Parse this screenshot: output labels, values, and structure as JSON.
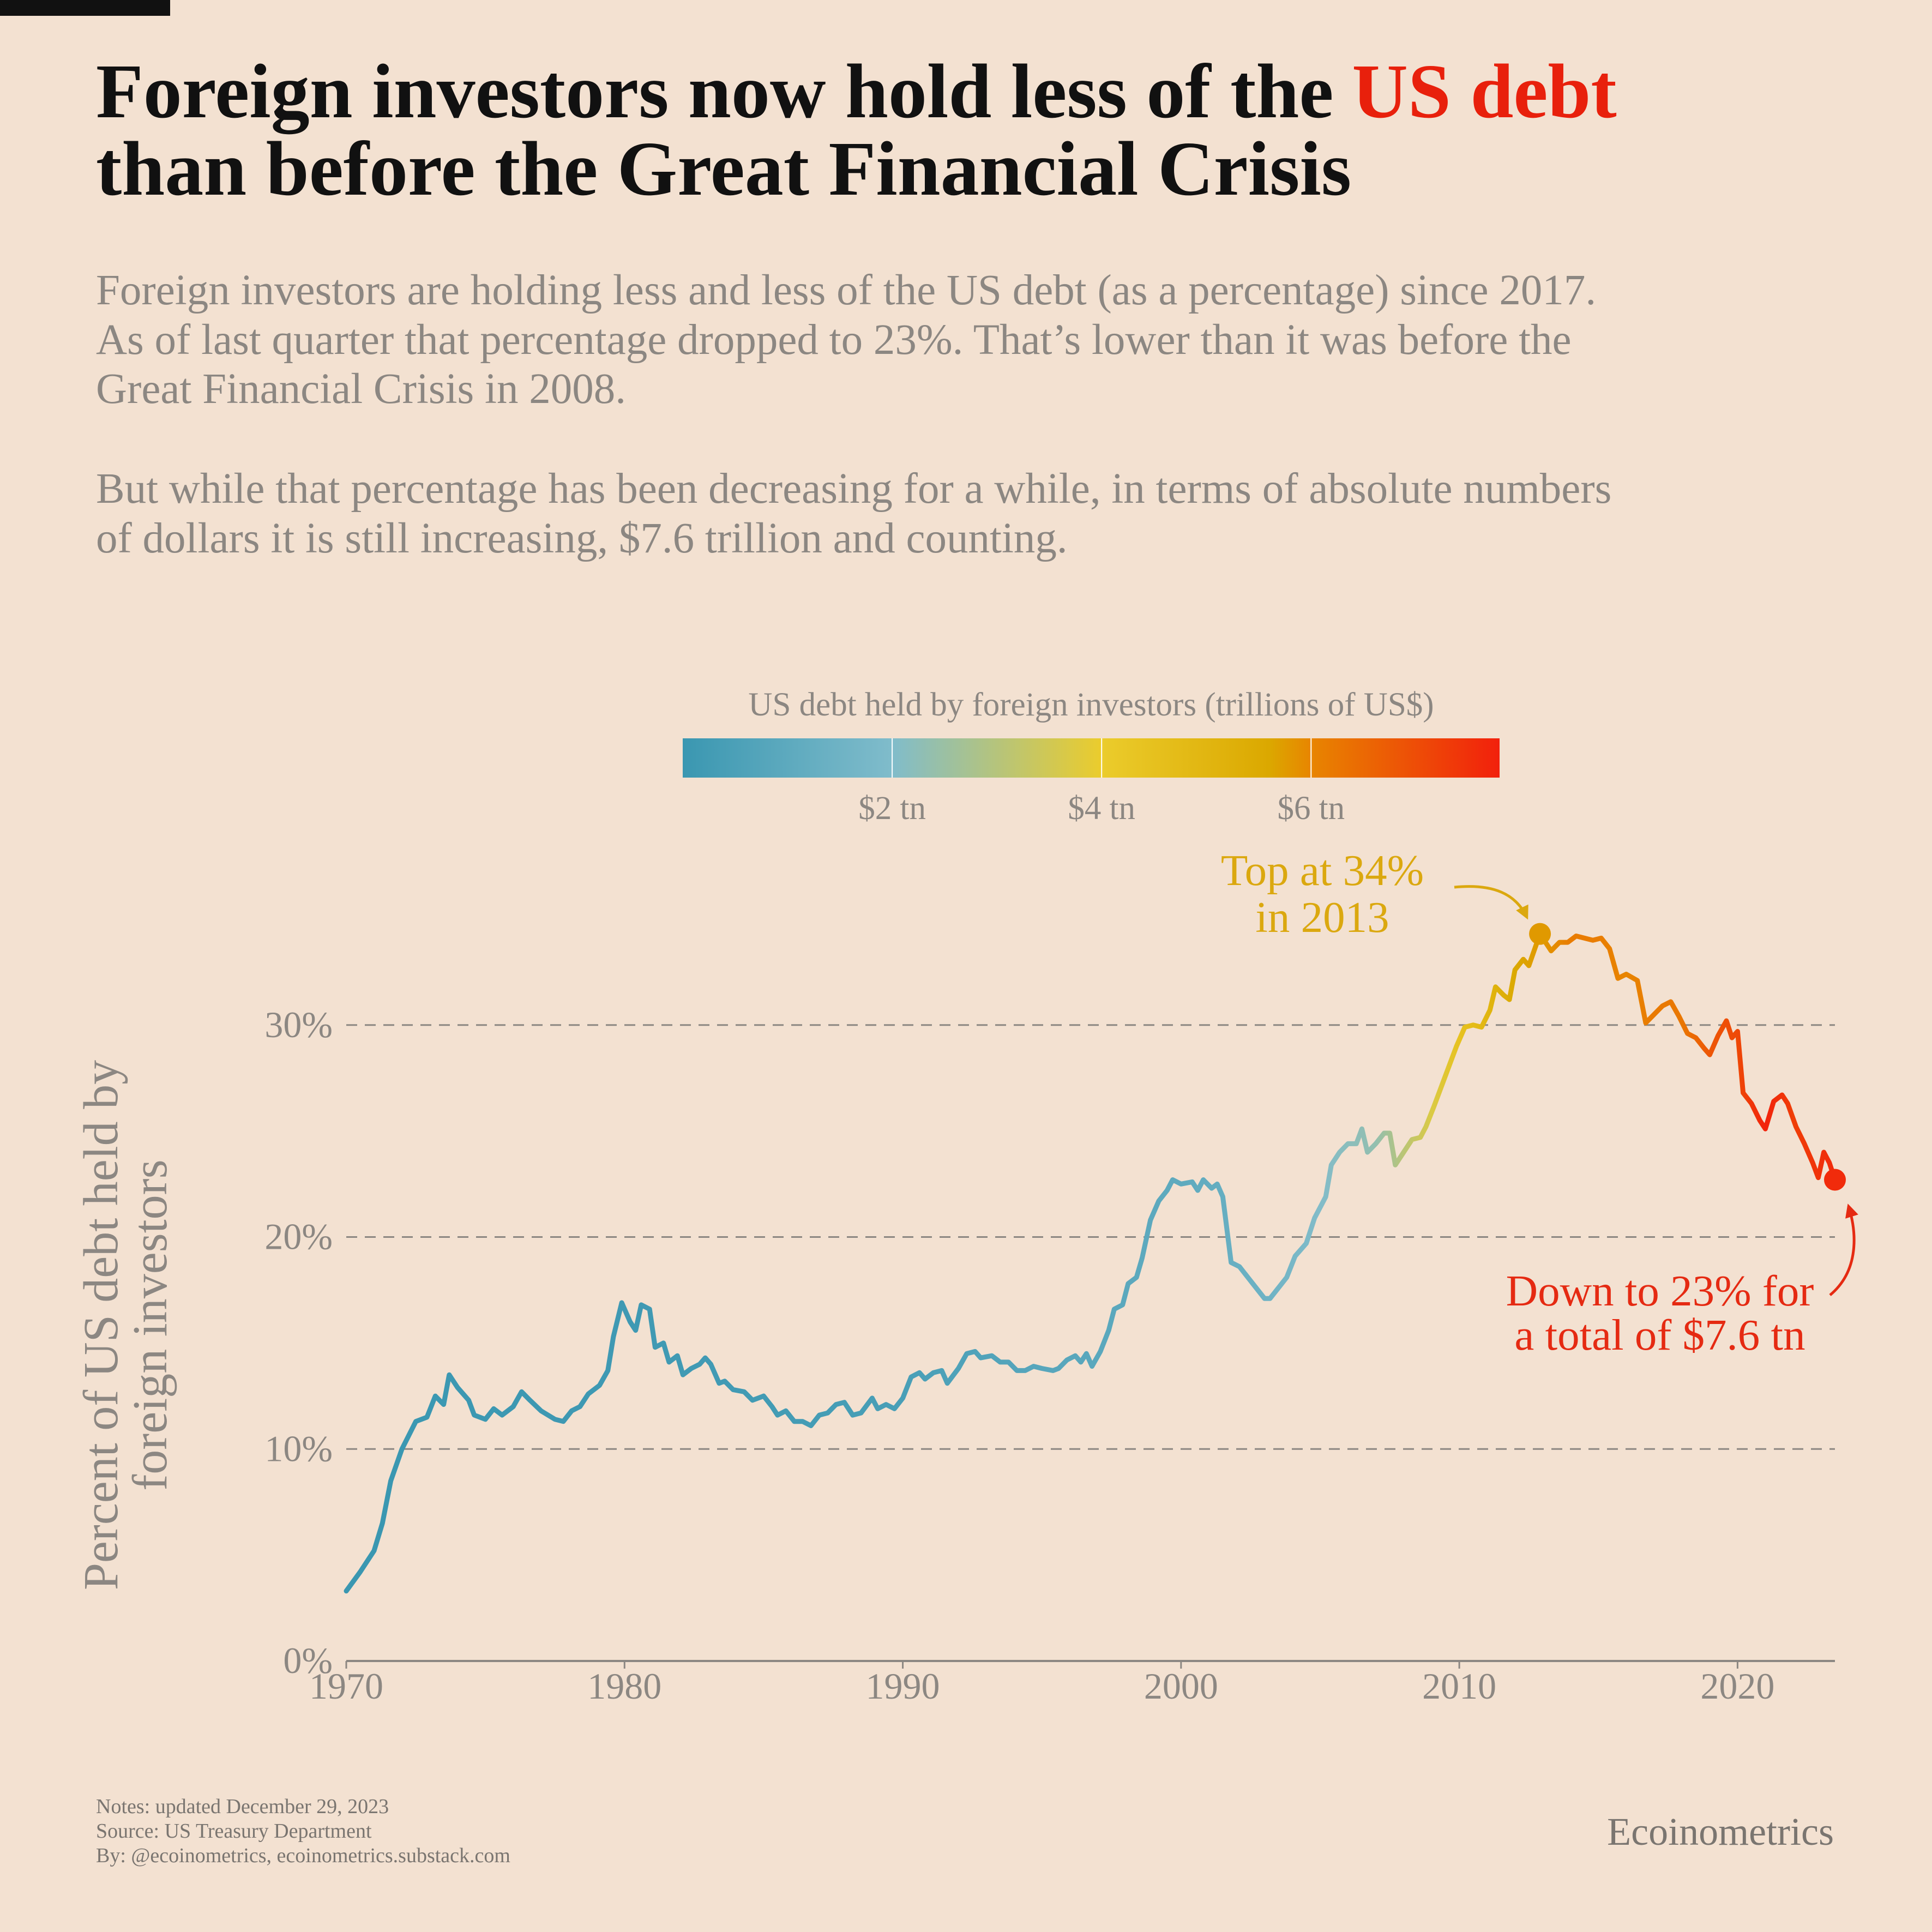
{
  "chart_data": {
    "type": "line",
    "title": {
      "before": "Foreign investors now hold less of the",
      "highlight": "US debt",
      "after": "than before the Great Financial Crisis",
      "highlight_color": "#e8200c"
    },
    "subtitle": [
      [
        "Foreign investors are holding less and less of the US debt (as a percentage) since 2017.",
        "As of last quarter that percentage dropped to 23%. That’s lower than it was before the",
        "Great Financial Crisis in 2008."
      ],
      [
        "But while that percentage has been decreasing for a while, in terms of absolute numbers",
        "of dollars it is still increasing, $7.6 trillion and counting."
      ]
    ],
    "ylabel": [
      "Percent of US debt held by",
      "foreign investors"
    ],
    "x": [
      1970.0,
      1970.5,
      1971.0,
      1971.3,
      1971.6,
      1972.0,
      1972.5,
      1972.9,
      1973.2,
      1973.5,
      1973.7,
      1974.0,
      1974.4,
      1974.6,
      1975.0,
      1975.3,
      1975.6,
      1976.0,
      1976.3,
      1976.6,
      1977.0,
      1977.5,
      1977.8,
      1978.1,
      1978.4,
      1978.7,
      1979.1,
      1979.4,
      1979.6,
      1979.9,
      1980.2,
      1980.4,
      1980.6,
      1980.9,
      1981.1,
      1981.4,
      1981.6,
      1981.9,
      1982.1,
      1982.4,
      1982.7,
      1982.9,
      1983.1,
      1983.4,
      1983.6,
      1983.9,
      1984.3,
      1984.6,
      1985.0,
      1985.3,
      1985.5,
      1985.8,
      1986.1,
      1986.4,
      1986.7,
      1987.0,
      1987.3,
      1987.6,
      1987.9,
      1988.2,
      1988.5,
      1988.9,
      1989.1,
      1989.4,
      1989.7,
      1990.0,
      1990.3,
      1990.6,
      1990.8,
      1991.1,
      1991.4,
      1991.6,
      1992.0,
      1992.3,
      1992.6,
      1992.8,
      1993.2,
      1993.5,
      1993.8,
      1994.1,
      1994.4,
      1994.7,
      1995.0,
      1995.4,
      1995.6,
      1995.9,
      1996.2,
      1996.4,
      1996.6,
      1996.8,
      1997.1,
      1997.4,
      1997.6,
      1997.9,
      1998.1,
      1998.4,
      1998.6,
      1998.9,
      1999.2,
      1999.5,
      1999.7,
      2000.0,
      2000.4,
      2000.6,
      2000.8,
      2001.1,
      2001.3,
      2001.5,
      2001.8,
      2002.1,
      2002.4,
      2002.7,
      2003.0,
      2003.2,
      2003.5,
      2003.8,
      2004.1,
      2004.5,
      2004.8,
      2005.2,
      2005.4,
      2005.7,
      2006.0,
      2006.3,
      2006.5,
      2006.7,
      2007.0,
      2007.3,
      2007.5,
      2007.7,
      2008.0,
      2008.3,
      2008.6,
      2008.8,
      2009.1,
      2009.5,
      2009.9,
      2010.2,
      2010.5,
      2010.8,
      2011.1,
      2011.3,
      2011.6,
      2011.8,
      2012.0,
      2012.3,
      2012.5,
      2012.9,
      2013.3,
      2013.6,
      2013.9,
      2014.2,
      2014.5,
      2014.8,
      2015.1,
      2015.4,
      2015.7,
      2016.0,
      2016.4,
      2016.7,
      2017.0,
      2017.3,
      2017.6,
      2017.9,
      2018.2,
      2018.5,
      2018.8,
      2019.0,
      2019.3,
      2019.6,
      2019.8,
      2020.0,
      2020.2,
      2020.5,
      2020.8,
      2021.0,
      2021.3,
      2021.6,
      2021.8,
      2022.1,
      2022.4,
      2022.7,
      2022.9,
      2023.1,
      2023.3,
      2023.5
    ],
    "series": [
      {
        "values": [
          3.3,
          4.2,
          5.2,
          6.5,
          8.5,
          10.0,
          11.3,
          11.5,
          12.5,
          12.1,
          13.5,
          12.9,
          12.3,
          11.6,
          11.4,
          11.9,
          11.6,
          12.0,
          12.7,
          12.3,
          11.8,
          11.4,
          11.3,
          11.8,
          12.0,
          12.6,
          13.0,
          13.7,
          15.3,
          16.9,
          16.0,
          15.6,
          16.8,
          16.6,
          14.8,
          15.0,
          14.1,
          14.4,
          13.5,
          13.8,
          14.0,
          14.3,
          14.0,
          13.1,
          13.2,
          12.8,
          12.7,
          12.3,
          12.5,
          12.0,
          11.6,
          11.8,
          11.3,
          11.3,
          11.1,
          11.6,
          11.7,
          12.1,
          12.2,
          11.6,
          11.7,
          12.4,
          11.9,
          12.1,
          11.9,
          12.4,
          13.4,
          13.6,
          13.3,
          13.6,
          13.7,
          13.1,
          13.8,
          14.5,
          14.6,
          14.3,
          14.4,
          14.1,
          14.1,
          13.7,
          13.7,
          13.9,
          13.8,
          13.7,
          13.8,
          14.2,
          14.4,
          14.1,
          14.5,
          13.9,
          14.6,
          15.6,
          16.6,
          16.8,
          17.8,
          18.1,
          19.0,
          20.8,
          21.7,
          22.2,
          22.7,
          22.5,
          22.6,
          22.2,
          22.7,
          22.3,
          22.5,
          21.9,
          18.8,
          18.6,
          18.1,
          17.6,
          17.1,
          17.1,
          17.6,
          18.1,
          19.1,
          19.7,
          20.9,
          21.9,
          23.4,
          24.0,
          24.4,
          24.4,
          25.1,
          24.0,
          24.4,
          24.9,
          24.9,
          23.4,
          24.0,
          24.6,
          24.7,
          25.2,
          26.2,
          27.6,
          29.0,
          29.9,
          30.0,
          29.9,
          30.7,
          31.8,
          31.4,
          31.2,
          32.6,
          33.1,
          32.8,
          34.3,
          33.5,
          33.9,
          33.9,
          34.2,
          34.1,
          34.0,
          34.1,
          33.6,
          32.2,
          32.4,
          32.1,
          30.1,
          30.5,
          30.9,
          31.1,
          30.4,
          29.6,
          29.4,
          28.9,
          28.6,
          29.5,
          30.2,
          29.4,
          29.7,
          26.8,
          26.3,
          25.5,
          25.1,
          26.4,
          26.7,
          26.3,
          25.2,
          24.4,
          23.5,
          22.8,
          24.0,
          23.5,
          22.7
        ]
      }
    ],
    "color_by": {
      "x": [
        1970,
        1975,
        1980,
        1985,
        1990,
        1995,
        2000,
        2003,
        2005,
        2007,
        2008,
        2009,
        2010,
        2011,
        2012,
        2013,
        2014,
        2015,
        2016,
        2017,
        2018,
        2019,
        2020,
        2021,
        2022,
        2023.5
      ],
      "values": [
        0.014,
        0.07,
        0.13,
        0.22,
        0.44,
        0.82,
        1.02,
        1.45,
        2.03,
        2.35,
        3.08,
        3.69,
        4.44,
        5.0,
        5.57,
        5.79,
        6.16,
        6.15,
        6.0,
        6.2,
        6.25,
        6.84,
        7.07,
        7.74,
        7.26,
        7.6
      ]
    },
    "colorbar": {
      "title": "US debt held by foreign investors (trillions of US$)",
      "lim": [
        0,
        7.8
      ],
      "ticks": [
        {
          "value": 2,
          "label": "$2 tn"
        },
        {
          "value": 4,
          "label": "$4 tn"
        },
        {
          "value": 6,
          "label": "$6 tn"
        }
      ],
      "colors": [
        {
          "value": 0,
          "color": "#3a97b1"
        },
        {
          "value": 2,
          "color": "#80bccb"
        },
        {
          "value": 4,
          "color": "#ebcc2c"
        },
        {
          "value": 5.6,
          "color": "#dba800"
        },
        {
          "value": 6,
          "color": "#e88500"
        },
        {
          "value": 7.8,
          "color": "#f2200c"
        }
      ]
    },
    "xlim": [
      1970,
      2023.5
    ],
    "xticks": [
      1970,
      1980,
      1990,
      2000,
      2010,
      2020
    ],
    "ylim": [
      0,
      40
    ],
    "yticks": [
      {
        "value": 0,
        "label": "0%"
      },
      {
        "value": 10,
        "label": "10%"
      },
      {
        "value": 20,
        "label": "20%"
      },
      {
        "value": 30,
        "label": "30%"
      }
    ],
    "grid": true,
    "annotations": [
      {
        "lines": [
          "Top at 34%",
          "in 2013"
        ],
        "color": "#dba80f"
      },
      {
        "lines": [
          "Down to 23% for",
          "a total of $7.6 tn"
        ],
        "color": "#e52a12"
      }
    ],
    "notes": [
      "Notes: updated December 29, 2023",
      "Source: US Treasury Department",
      "By: @ecoinometrics, ecoinometrics.substack.com"
    ],
    "brand": "Ecoinometrics"
  }
}
